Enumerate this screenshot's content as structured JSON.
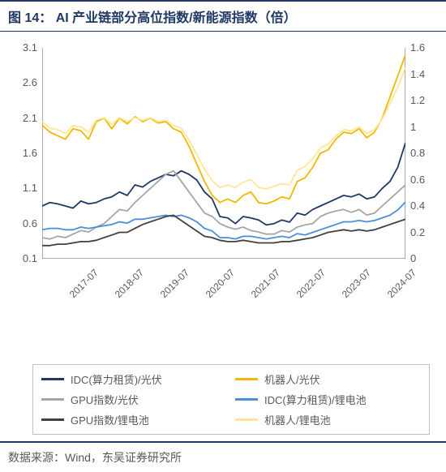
{
  "title": "图 14： AI 产业链部分高位指数/新能源指数（倍）",
  "source": "数据来源：Wind，东吴证券研究所",
  "chart": {
    "type": "line",
    "background_color": "#ffffff",
    "grid_color": "#e0e0e0",
    "axis_color": "#595959",
    "title_color": "#1f3864",
    "border_color": "#1f3864",
    "font_family": "Microsoft YaHei",
    "label_fontsize": 13,
    "x_ticks": [
      "2017-07",
      "2018-07",
      "2019-07",
      "2020-07",
      "2021-07",
      "2022-07",
      "2023-07",
      "2024-07"
    ],
    "left_axis": {
      "min": 0.1,
      "max": 3.1,
      "step": 0.5,
      "ticks": [
        0.1,
        0.6,
        1.1,
        1.6,
        2.1,
        2.6,
        3.1
      ]
    },
    "right_axis": {
      "min": 0,
      "max": 1.6,
      "step": 0.2,
      "ticks": [
        0,
        0.2,
        0.4,
        0.6,
        0.8,
        1.0,
        1.2,
        1.4,
        1.6
      ]
    },
    "line_width": 1.8,
    "series": [
      {
        "name": "IDC(算力租赁)/光伏",
        "color": "#1f3864",
        "axis": "left",
        "data": [
          0.85,
          0.9,
          0.88,
          0.85,
          0.82,
          0.92,
          0.88,
          0.9,
          0.95,
          0.98,
          1.05,
          1.0,
          1.15,
          1.12,
          1.2,
          1.25,
          1.3,
          1.28,
          1.35,
          1.3,
          1.22,
          1.05,
          0.95,
          0.7,
          0.68,
          0.6,
          0.7,
          0.68,
          0.65,
          0.58,
          0.6,
          0.65,
          0.62,
          0.75,
          0.72,
          0.8,
          0.85,
          0.9,
          0.95,
          1.0,
          0.98,
          1.02,
          0.95,
          0.98,
          1.1,
          1.2,
          1.4,
          1.75
        ]
      },
      {
        "name": "机器人/光伏",
        "color": "#f2b800",
        "axis": "left",
        "data": [
          2.0,
          1.9,
          1.85,
          1.8,
          1.95,
          1.92,
          1.8,
          2.05,
          2.1,
          1.95,
          2.1,
          2.02,
          2.12,
          2.05,
          2.1,
          2.03,
          2.05,
          1.95,
          1.9,
          1.7,
          1.45,
          1.2,
          1.0,
          0.9,
          0.95,
          0.9,
          1.0,
          1.05,
          0.9,
          0.88,
          0.92,
          0.98,
          0.95,
          1.2,
          1.25,
          1.4,
          1.6,
          1.65,
          1.8,
          1.9,
          1.88,
          1.95,
          1.82,
          1.9,
          2.1,
          2.4,
          2.7,
          3.0
        ]
      },
      {
        "name": "GPU指数/光伏",
        "color": "#a6a6a6",
        "axis": "left",
        "data": [
          0.4,
          0.38,
          0.42,
          0.4,
          0.45,
          0.5,
          0.48,
          0.55,
          0.6,
          0.7,
          0.8,
          0.78,
          0.9,
          1.0,
          1.1,
          1.2,
          1.3,
          1.35,
          1.2,
          1.05,
          0.9,
          0.75,
          0.7,
          0.6,
          0.55,
          0.52,
          0.55,
          0.5,
          0.48,
          0.45,
          0.45,
          0.5,
          0.48,
          0.55,
          0.58,
          0.6,
          0.7,
          0.75,
          0.78,
          0.8,
          0.76,
          0.8,
          0.72,
          0.75,
          0.85,
          0.95,
          1.05,
          1.15
        ]
      },
      {
        "name": "IDC(算力租赁)/锂电池",
        "color": "#4a90d9",
        "axis": "right",
        "data": [
          0.22,
          0.23,
          0.23,
          0.22,
          0.22,
          0.24,
          0.23,
          0.24,
          0.25,
          0.26,
          0.28,
          0.27,
          0.3,
          0.3,
          0.31,
          0.32,
          0.33,
          0.32,
          0.33,
          0.31,
          0.28,
          0.23,
          0.21,
          0.16,
          0.16,
          0.15,
          0.17,
          0.17,
          0.16,
          0.15,
          0.16,
          0.17,
          0.16,
          0.19,
          0.18,
          0.2,
          0.22,
          0.24,
          0.26,
          0.28,
          0.28,
          0.29,
          0.28,
          0.29,
          0.31,
          0.33,
          0.37,
          0.43
        ]
      },
      {
        "name": "GPU指数/锂电池",
        "color": "#404040",
        "axis": "right",
        "data": [
          0.1,
          0.1,
          0.11,
          0.11,
          0.12,
          0.13,
          0.13,
          0.14,
          0.16,
          0.18,
          0.2,
          0.2,
          0.23,
          0.26,
          0.28,
          0.3,
          0.32,
          0.33,
          0.29,
          0.25,
          0.21,
          0.17,
          0.16,
          0.14,
          0.13,
          0.13,
          0.14,
          0.13,
          0.12,
          0.12,
          0.12,
          0.13,
          0.13,
          0.14,
          0.15,
          0.16,
          0.18,
          0.2,
          0.21,
          0.22,
          0.21,
          0.22,
          0.21,
          0.22,
          0.24,
          0.26,
          0.28,
          0.3
        ]
      },
      {
        "name": "机器人/锂电池",
        "color": "#ffe699",
        "axis": "right",
        "data": [
          1.04,
          0.99,
          0.98,
          0.95,
          1.01,
          1.0,
          0.96,
          1.05,
          1.07,
          1.02,
          1.07,
          1.04,
          1.07,
          1.05,
          1.07,
          1.04,
          1.05,
          1.01,
          0.99,
          0.9,
          0.79,
          0.68,
          0.59,
          0.54,
          0.56,
          0.54,
          0.58,
          0.6,
          0.54,
          0.53,
          0.55,
          0.57,
          0.56,
          0.67,
          0.7,
          0.76,
          0.84,
          0.87,
          0.93,
          0.98,
          0.97,
          1.0,
          0.95,
          0.98,
          1.06,
          1.18,
          1.3,
          1.45
        ]
      }
    ],
    "legend": {
      "border_color": "#bfbfbf",
      "fontsize": 13,
      "columns": 2,
      "position": "bottom",
      "order": [
        {
          "label": "IDC(算力租赁)/光伏",
          "color": "#1f3864"
        },
        {
          "label": "机器人/光伏",
          "color": "#f2b800"
        },
        {
          "label": "GPU指数/光伏",
          "color": "#a6a6a6"
        },
        {
          "label": "IDC(算力租赁)/锂电池",
          "color": "#4a90d9"
        },
        {
          "label": "GPU指数/锂电池",
          "color": "#404040"
        },
        {
          "label": "机器人/锂电池",
          "color": "#ffe699"
        }
      ]
    }
  }
}
